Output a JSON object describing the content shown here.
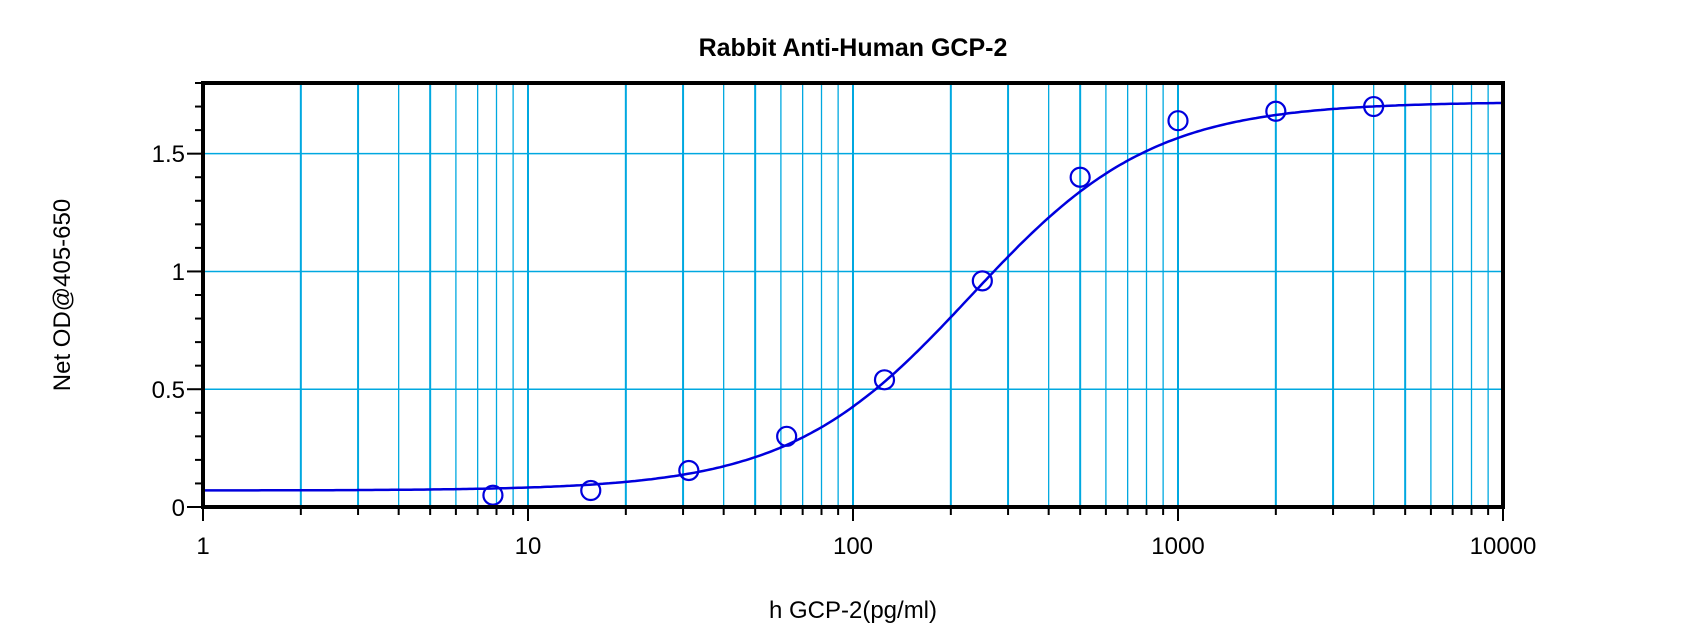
{
  "chart_data": {
    "type": "scatter",
    "title": "Rabbit Anti-Human GCP-2",
    "xlabel": "h GCP-2(pg/ml)",
    "ylabel": "Net OD@405-650",
    "x_scale": "log",
    "xlim": [
      1,
      10000
    ],
    "ylim": [
      0,
      1.8
    ],
    "x_ticks": [
      "1",
      "10",
      "100",
      "1000",
      "10000"
    ],
    "y_ticks": [
      "0",
      "0.5",
      "1",
      "1.5"
    ],
    "grid": true,
    "series": [
      {
        "marker": "open-circle",
        "fit": "sigmoidal curve",
        "color": "#0000dd",
        "x": [
          7.8,
          15.6,
          31.25,
          62.5,
          125,
          250,
          500,
          1000,
          2000,
          4000
        ],
        "y": [
          0.05,
          0.07,
          0.155,
          0.3,
          0.54,
          0.96,
          1.4,
          1.64,
          1.68,
          1.7
        ]
      }
    ],
    "grid_color": "#00a8e0"
  }
}
